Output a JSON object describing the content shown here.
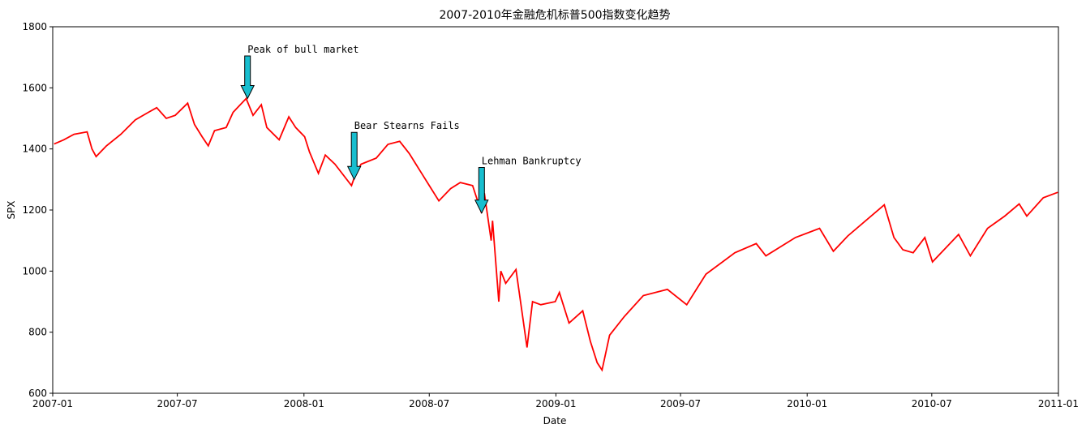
{
  "chart_data": {
    "type": "line",
    "title": "2007-2010年金融危机标普500指数变化趋势",
    "xlabel": "Date",
    "ylabel": "SPX",
    "xlim": [
      "2007-01-01",
      "2011-01-01"
    ],
    "ylim": [
      600,
      1800
    ],
    "x_ticks": [
      "2007-01-01",
      "2007-07-01",
      "2008-01-01",
      "2008-07-01",
      "2009-01-01",
      "2009-07-01",
      "2010-01-01",
      "2010-07-01",
      "2011-01-01"
    ],
    "x_tick_labels": [
      "2007-01",
      "2007-07",
      "2008-01",
      "2008-07",
      "2009-01",
      "2009-07",
      "2010-01",
      "2010-07",
      "2011-01"
    ],
    "y_ticks": [
      600,
      800,
      1000,
      1200,
      1400,
      1600,
      1800
    ],
    "y_tick_labels": [
      "600",
      "800",
      "1000",
      "1200",
      "1400",
      "1600",
      "1800"
    ],
    "grid": false,
    "colors": {
      "line": "#ff0000",
      "arrow_fill": "#17becf",
      "arrow_edge": "#000000"
    },
    "series": [
      {
        "x": [
          "2007-01-03",
          "2007-01-17",
          "2007-02-01",
          "2007-02-20",
          "2007-02-27",
          "2007-03-05",
          "2007-03-20",
          "2007-04-10",
          "2007-05-01",
          "2007-05-20",
          "2007-06-01",
          "2007-06-15",
          "2007-06-28",
          "2007-07-16",
          "2007-07-26",
          "2007-08-06",
          "2007-08-15",
          "2007-08-24",
          "2007-09-10",
          "2007-09-20",
          "2007-10-09",
          "2007-10-19",
          "2007-10-31",
          "2007-11-08",
          "2007-11-26",
          "2007-12-10",
          "2007-12-20",
          "2008-01-02",
          "2008-01-09",
          "2008-01-22",
          "2008-02-01",
          "2008-02-15",
          "2008-03-10",
          "2008-03-17",
          "2008-03-24",
          "2008-04-15",
          "2008-05-02",
          "2008-05-19",
          "2008-06-02",
          "2008-06-20",
          "2008-07-01",
          "2008-07-15",
          "2008-08-01",
          "2008-08-15",
          "2008-09-02",
          "2008-09-15",
          "2008-09-19",
          "2008-09-29",
          "2008-10-01",
          "2008-10-10",
          "2008-10-13",
          "2008-10-20",
          "2008-11-04",
          "2008-11-20",
          "2008-11-28",
          "2008-12-10",
          "2008-12-31",
          "2009-01-06",
          "2009-01-20",
          "2009-02-09",
          "2009-02-20",
          "2009-03-02",
          "2009-03-09",
          "2009-03-20",
          "2009-04-10",
          "2009-05-08",
          "2009-06-12",
          "2009-07-10",
          "2009-07-24",
          "2009-08-07",
          "2009-09-18",
          "2009-10-19",
          "2009-11-02",
          "2009-12-15",
          "2010-01-19",
          "2010-02-08",
          "2010-03-01",
          "2010-04-23",
          "2010-05-07",
          "2010-05-20",
          "2010-06-04",
          "2010-06-21",
          "2010-07-02",
          "2010-08-09",
          "2010-08-26",
          "2010-09-20",
          "2010-10-15",
          "2010-11-05",
          "2010-11-16",
          "2010-12-10",
          "2010-12-31"
        ],
        "y": [
          1416,
          1430,
          1448,
          1456,
          1400,
          1375,
          1410,
          1448,
          1495,
          1520,
          1535,
          1500,
          1510,
          1550,
          1480,
          1440,
          1410,
          1460,
          1470,
          1520,
          1565,
          1510,
          1545,
          1470,
          1430,
          1505,
          1470,
          1440,
          1390,
          1320,
          1380,
          1350,
          1280,
          1325,
          1350,
          1370,
          1415,
          1425,
          1385,
          1320,
          1280,
          1230,
          1270,
          1290,
          1280,
          1190,
          1255,
          1100,
          1165,
          900,
          1000,
          960,
          1005,
          750,
          900,
          890,
          900,
          930,
          830,
          870,
          770,
          700,
          676,
          790,
          850,
          920,
          940,
          890,
          940,
          990,
          1060,
          1090,
          1050,
          1110,
          1140,
          1065,
          1115,
          1217,
          1110,
          1070,
          1060,
          1110,
          1030,
          1120,
          1050,
          1140,
          1180,
          1220,
          1180,
          1240,
          1258
        ]
      }
    ],
    "annotations": [
      {
        "text": "Peak of bull market",
        "date": "2007-10-11",
        "value": 1565,
        "text_value": 1715
      },
      {
        "text": "Bear Stearns Fails",
        "date": "2008-03-14",
        "value": 1300,
        "text_value": 1465
      },
      {
        "text": "Lehman Bankruptcy",
        "date": "2008-09-15",
        "value": 1190,
        "text_value": 1350
      }
    ]
  }
}
